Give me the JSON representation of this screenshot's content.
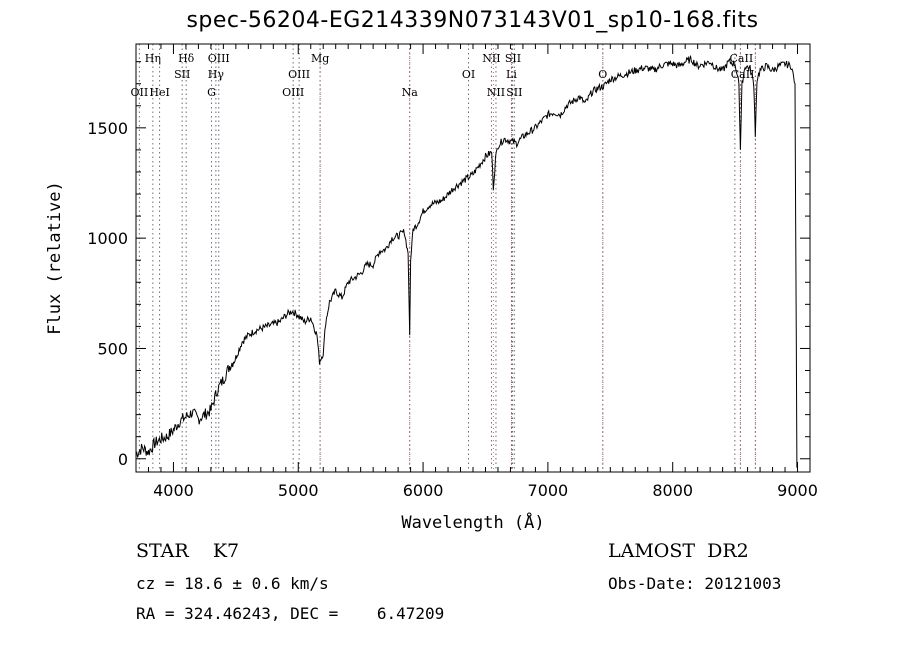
{
  "chart_data": {
    "type": "line",
    "title": "spec-56204-EG214339N073143V01_sp10-168.fits",
    "xlabel": "Wavelength (Å)",
    "ylabel": "Flux (relative)",
    "xlim": [
      3700,
      9100
    ],
    "ylim": [
      -60,
      1880
    ],
    "x_ticks": [
      4000,
      5000,
      6000,
      7000,
      8000,
      9000
    ],
    "y_ticks": [
      0,
      500,
      1000,
      1500
    ],
    "grid": false,
    "series": [
      {
        "x": [
          3700,
          3750,
          3800,
          3850,
          3900,
          3950,
          4000,
          4050,
          4100,
          4150,
          4200,
          4250,
          4300,
          4350,
          4400,
          4450,
          4500,
          4550,
          4600,
          4650,
          4700,
          4750,
          4800,
          4850,
          4900,
          4950,
          5000,
          5050,
          5100,
          5150,
          5170,
          5200,
          5220,
          5250,
          5300,
          5350,
          5400,
          5450,
          5500,
          5550,
          5600,
          5650,
          5700,
          5750,
          5800,
          5850,
          5880,
          5893,
          5900,
          5920,
          5950,
          6000,
          6050,
          6100,
          6150,
          6200,
          6250,
          6300,
          6350,
          6400,
          6450,
          6500,
          6550,
          6563,
          6580,
          6600,
          6650,
          6700,
          6750,
          6800,
          6850,
          6900,
          6950,
          7000,
          7050,
          7100,
          7150,
          7200,
          7250,
          7300,
          7350,
          7400,
          7450,
          7500,
          7550,
          7600,
          7650,
          7700,
          7750,
          7800,
          7850,
          7900,
          7950,
          8000,
          8050,
          8100,
          8150,
          8200,
          8250,
          8300,
          8350,
          8400,
          8450,
          8500,
          8530,
          8542,
          8555,
          8580,
          8620,
          8650,
          8662,
          8675,
          8700,
          8750,
          8800,
          8850,
          8900,
          8950,
          8980,
          8995
        ],
        "y": [
          20,
          50,
          30,
          70,
          90,
          100,
          130,
          170,
          190,
          210,
          180,
          200,
          220,
          310,
          360,
          420,
          460,
          530,
          560,
          580,
          590,
          600,
          610,
          620,
          650,
          670,
          650,
          620,
          640,
          560,
          440,
          480,
          620,
          710,
          760,
          730,
          800,
          820,
          840,
          880,
          880,
          940,
          950,
          1000,
          1010,
          1030,
          930,
          560,
          900,
          1040,
          1060,
          1120,
          1150,
          1160,
          1170,
          1200,
          1230,
          1250,
          1270,
          1290,
          1330,
          1370,
          1390,
          1230,
          1360,
          1420,
          1450,
          1440,
          1430,
          1460,
          1480,
          1500,
          1530,
          1560,
          1570,
          1560,
          1600,
          1620,
          1640,
          1610,
          1660,
          1680,
          1690,
          1720,
          1730,
          1740,
          1750,
          1760,
          1770,
          1770,
          1760,
          1780,
          1790,
          1790,
          1780,
          1800,
          1810,
          1780,
          1790,
          1800,
          1770,
          1760,
          1800,
          1790,
          1700,
          1400,
          1700,
          1780,
          1770,
          1700,
          1460,
          1720,
          1760,
          1780,
          1760,
          1780,
          1790,
          1780,
          1700,
          -40
        ]
      }
    ],
    "lines_blue": [
      {
        "label": "OII",
        "x": 3727
      },
      {
        "label": "Hη",
        "x": 3835
      },
      {
        "label": "HeI",
        "x": 3889
      },
      {
        "label": "Hδ",
        "x": 4102
      },
      {
        "label": "SII",
        "x": 4070
      },
      {
        "label": "OIII",
        "x": 4363
      },
      {
        "label": "Hγ",
        "x": 4340
      },
      {
        "label": "G",
        "x": 4305
      },
      {
        "label": "OIII",
        "x": 4959
      },
      {
        "label": "OIII",
        "x": 5007
      },
      {
        "label": "Mg",
        "x": 5175
      },
      {
        "label": "Na",
        "x": 5893
      },
      {
        "label": "OI",
        "x": 6364
      },
      {
        "label": "NII",
        "x": 6548
      },
      {
        "label": "SII",
        "x": 6717
      },
      {
        "label": "Li",
        "x": 6708
      },
      {
        "label": "NII",
        "x": 6584
      },
      {
        "label": "SII",
        "x": 6731
      },
      {
        "label": "O",
        "x": 7440
      },
      {
        "label": "CaII",
        "x": 8498
      },
      {
        "label": "CaII",
        "x": 8542
      },
      {
        "label": "CaII",
        "x": 8662
      }
    ]
  },
  "labels": {
    "line_label_rows": [
      {
        "text": "Hη",
        "x": 3835,
        "row": 1
      },
      {
        "text": "Hδ",
        "x": 4102,
        "row": 1
      },
      {
        "text": "OIII",
        "x": 4363,
        "row": 1
      },
      {
        "text": "Mg",
        "x": 5175,
        "row": 1
      },
      {
        "text": "NII",
        "x": 6548,
        "row": 1
      },
      {
        "text": "SII",
        "x": 6720,
        "row": 1
      },
      {
        "text": "CaII",
        "x": 8550,
        "row": 1
      },
      {
        "text": "SII",
        "x": 4070,
        "row": 2
      },
      {
        "text": "Hγ",
        "x": 4340,
        "row": 2
      },
      {
        "text": "OIII",
        "x": 5007,
        "row": 2
      },
      {
        "text": "OI",
        "x": 6364,
        "row": 2
      },
      {
        "text": "Li",
        "x": 6708,
        "row": 2
      },
      {
        "text": "O",
        "x": 7440,
        "row": 2
      },
      {
        "text": "CaII",
        "x": 8560,
        "row": 2
      },
      {
        "text": "OII",
        "x": 3727,
        "row": 3
      },
      {
        "text": "HeI",
        "x": 3889,
        "row": 3
      },
      {
        "text": "G",
        "x": 4305,
        "row": 3
      },
      {
        "text": "OIII",
        "x": 4959,
        "row": 3
      },
      {
        "text": "Na",
        "x": 5893,
        "row": 3
      },
      {
        "text": "NII",
        "x": 6584,
        "row": 3
      },
      {
        "text": "SII",
        "x": 6731,
        "row": 3
      }
    ]
  },
  "info": {
    "object_class": "STAR    K7",
    "survey": "LAMOST  DR2",
    "redshift": "cz = 18.6 ± 0.6 km/s",
    "obs_date": "Obs-Date: 20121003",
    "coords": "RA = 324.46243, DEC =    6.47209"
  }
}
